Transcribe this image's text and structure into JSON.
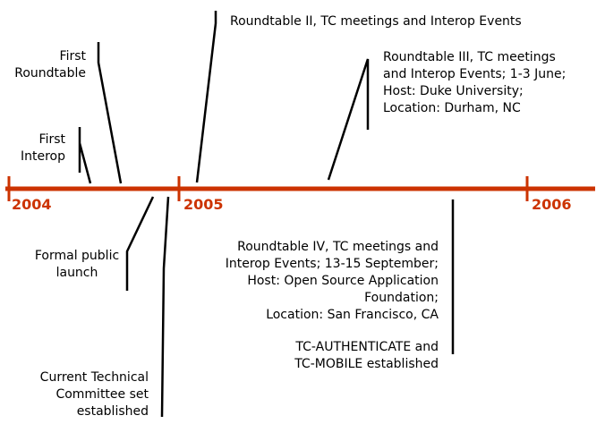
{
  "colors": {
    "axis": "#cc3300",
    "year_label": "#cc3300",
    "leader_line": "#000000",
    "text": "#000000",
    "background": "#ffffff"
  },
  "years": [
    "2004",
    "2005",
    "2006"
  ],
  "events": {
    "roundtable_ii": [
      "Roundtable II, TC meetings and Interop Events"
    ],
    "first_roundtable": [
      "First",
      "Roundtable"
    ],
    "roundtable_iii": [
      "Roundtable III, TC meetings",
      "and Interop Events; 1-3 June;",
      "Host: Duke University;",
      "Location:  Durham, NC"
    ],
    "first_interop": [
      "First",
      "Interop"
    ],
    "formal_launch": [
      "Formal public",
      "launch"
    ],
    "roundtable_iv": [
      "Roundtable IV, TC meetings and",
      "Interop Events; 13-15 September;",
      "Host: Open Source Application",
      "Foundation;",
      "Location: San Francisco, CA"
    ],
    "tc_authenticate": [
      "TC-AUTHENTICATE and",
      "TC-MOBILE established"
    ],
    "technical_committee": [
      "Current Technical",
      "Committee set",
      "established"
    ]
  }
}
